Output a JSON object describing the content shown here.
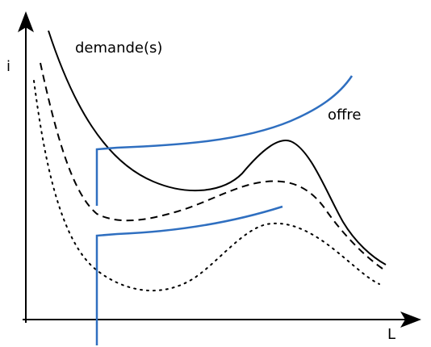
{
  "axes": {
    "y_label": "i",
    "x_label": "L"
  },
  "labels": {
    "demand": "demande(s)",
    "supply": "offre"
  },
  "colors": {
    "axis": "#000000",
    "demand": "#000000",
    "supply": "#2f6fc0"
  }
}
